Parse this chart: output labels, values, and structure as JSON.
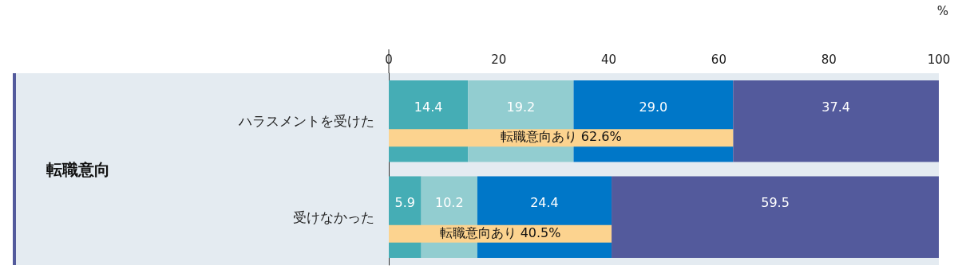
{
  "chart_data": {
    "type": "bar",
    "orientation": "horizontal",
    "stacked": true,
    "xlabel": "%",
    "categories": [
      "ハラスメントを受けた",
      "受けなかった"
    ],
    "series": [
      {
        "color": "#45adb5",
        "values": [
          14.4,
          5.9
        ],
        "value_labels": [
          "14.4",
          "5.9"
        ]
      },
      {
        "color": "#92cdd0",
        "values": [
          19.2,
          10.2
        ],
        "value_labels": [
          "19.2",
          "10.2"
        ]
      },
      {
        "color": "#0077c8",
        "values": [
          29.0,
          24.4
        ],
        "value_labels": [
          "29.0",
          "24.4"
        ]
      },
      {
        "color": "#535a9c",
        "values": [
          37.4,
          59.5
        ],
        "value_labels": [
          "37.4",
          "59.5"
        ]
      }
    ],
    "xlim": [
      0,
      100
    ],
    "xticks": [
      0,
      20,
      40,
      60,
      80,
      100
    ],
    "grid": false,
    "bands": [
      {
        "axis": "x",
        "from": 0,
        "to": 62.6,
        "label": "転職意向あり 62.6%",
        "color": "#fcd38f"
      },
      {
        "axis": "x",
        "from": 0,
        "to": 40.5,
        "label": "転職意向あり 40.5%",
        "color": "#fcd38f"
      }
    ],
    "annotations": [
      "転職意向"
    ]
  }
}
